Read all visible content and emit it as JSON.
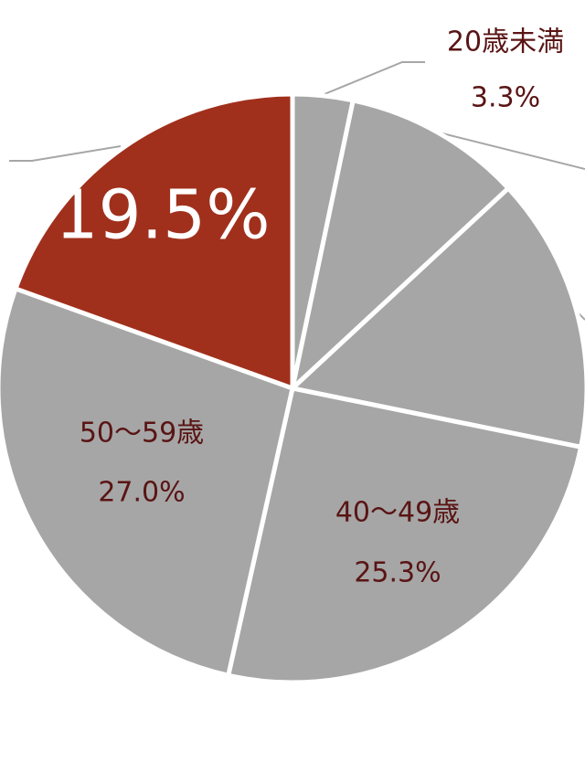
{
  "chart_data": {
    "type": "pie",
    "categories": [
      "20歳未満",
      null,
      null,
      "40～49歳",
      "50～59歳",
      null
    ],
    "values": [
      3.3,
      9.8,
      15.1,
      25.3,
      27.0,
      19.5
    ],
    "value_labels": [
      "3.3%",
      null,
      null,
      "25.3%",
      "27.0%",
      "19.5%"
    ],
    "colors": [
      "#a6a6a6",
      "#a6a6a6",
      "#a6a6a6",
      "#a6a6a6",
      "#a6a6a6",
      "#a0301c"
    ]
  }
}
